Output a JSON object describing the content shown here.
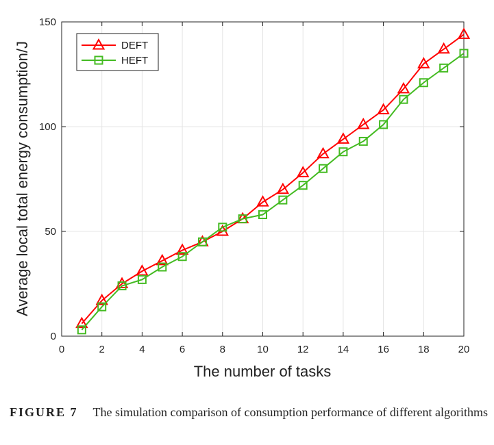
{
  "chart_data": {
    "type": "line",
    "xlabel": "The number of tasks",
    "ylabel": "Average local total energy consumption/J",
    "xlim": [
      0,
      20
    ],
    "ylim": [
      0,
      150
    ],
    "xticks": [
      0,
      2,
      4,
      6,
      8,
      10,
      12,
      14,
      16,
      18,
      20
    ],
    "yticks": [
      0,
      50,
      100,
      150
    ],
    "grid": true,
    "legend_position": "top-left",
    "x": [
      1,
      2,
      3,
      4,
      5,
      6,
      7,
      8,
      9,
      10,
      11,
      12,
      13,
      14,
      15,
      16,
      17,
      18,
      19,
      20
    ],
    "series": [
      {
        "name": "DEFT",
        "color": "#ff0000",
        "marker": "triangle",
        "values": [
          6,
          17,
          25,
          31,
          36,
          41,
          45,
          50,
          56,
          64,
          70,
          78,
          87,
          94,
          101,
          108,
          118,
          130,
          137,
          144
        ]
      },
      {
        "name": "HEFT",
        "color": "#44bb22",
        "marker": "square",
        "values": [
          3,
          14,
          24,
          27,
          33,
          38,
          45,
          52,
          56,
          58,
          65,
          72,
          80,
          88,
          93,
          101,
          113,
          121,
          128,
          135
        ]
      }
    ]
  },
  "caption": {
    "label": "FIGURE 7",
    "text": "The simulation comparison of consumption performance of different algorithms"
  }
}
